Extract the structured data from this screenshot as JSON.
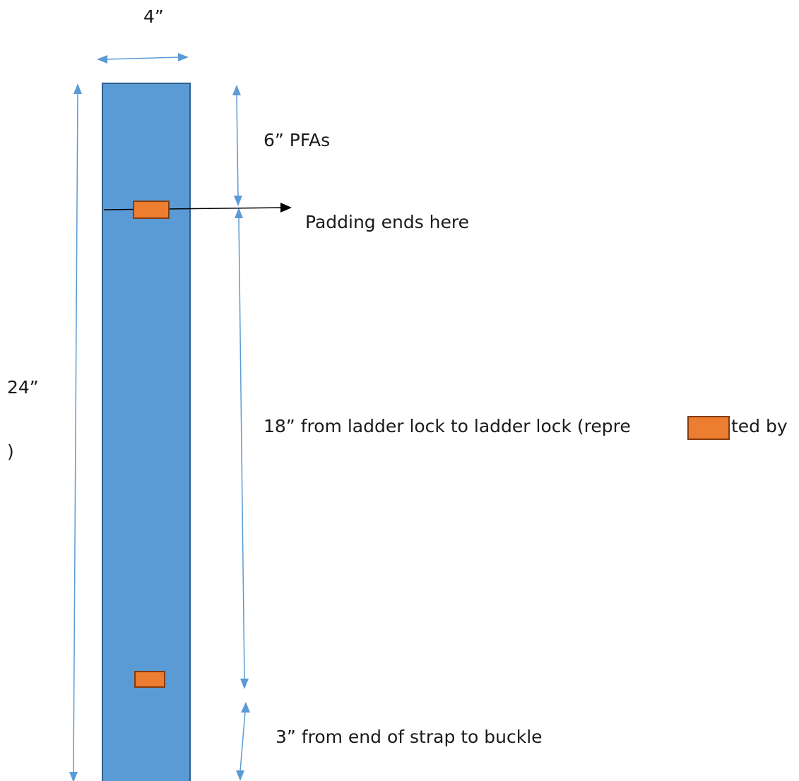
{
  "labels": {
    "width": "4”",
    "top_section": "6” PFAs",
    "padding_note": "Padding ends here",
    "total_length": "24”",
    "total_length_paren": ")",
    "middle_section_before": "18” from ladder lock to ladder lock (repre",
    "middle_section_after": "ted by",
    "bottom_section": "3” from end of strap to buckle"
  },
  "colors": {
    "strap_fill": "#5b9bd5",
    "strap_stroke": "#2e5f8f",
    "ladder_lock_fill": "#ed7d31",
    "ladder_lock_stroke": "#843c0c",
    "dimension_arrow": "#5b9bd5",
    "pointer_arrow": "#000000",
    "text": "#1a1a1a"
  }
}
